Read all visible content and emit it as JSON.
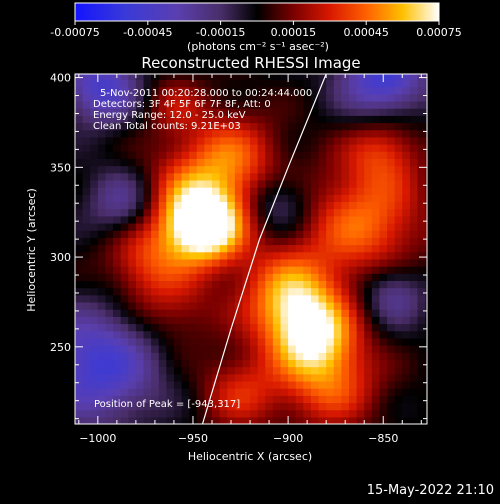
{
  "colorbar": {
    "tick_labels": [
      "-0.00075",
      "-0.00045",
      "-0.00015",
      "0.00015",
      "0.00045",
      "0.00075"
    ],
    "tick_values": [
      -0.00075,
      -0.00045,
      -0.00015,
      0.00015,
      0.00045,
      0.00075
    ],
    "range": [
      -0.00075,
      0.00075
    ],
    "units_label": "(photons cm⁻² s⁻¹ asec⁻²)"
  },
  "chart_data": {
    "type": "heatmap",
    "title": "Reconstructed RHESSI Image",
    "xlabel": "Heliocentric X (arcsec)",
    "ylabel": "Heliocentric Y (arcsec)",
    "xlim": [
      -1012,
      -827
    ],
    "ylim": [
      207,
      402
    ],
    "x_ticks": [
      -1000,
      -950,
      -900,
      -850
    ],
    "x_tick_labels": [
      "−1000",
      "−950",
      "−900",
      "−850"
    ],
    "y_ticks": [
      250,
      300,
      350,
      400
    ],
    "y_tick_labels": [
      "250",
      "300",
      "350",
      "400"
    ],
    "info_lines": [
      "5-Nov-2011 00:20:28.000 to 00:24:44.000",
      "Detectors: 3F 4F 5F 6F 7F 8F, Att: 0",
      "Energy Range: 12.0 - 25.0 keV",
      "Clean    Total counts: 9.21E+03"
    ],
    "peak_label": "Position of Peak = [-943,317]",
    "peak_position": [
      -943,
      317
    ],
    "limb_curve": [
      [
        -945,
        207
      ],
      [
        -930,
        260
      ],
      [
        -915,
        310
      ],
      [
        -900,
        350
      ],
      [
        -880,
        402
      ]
    ],
    "blobs": [
      {
        "x": -943,
        "y": 317,
        "sigma": 14,
        "amp": 0.00075
      },
      {
        "x": -955,
        "y": 330,
        "sigma": 20,
        "amp": 0.0004
      },
      {
        "x": -930,
        "y": 355,
        "sigma": 18,
        "amp": 0.0004
      },
      {
        "x": -975,
        "y": 298,
        "sigma": 16,
        "amp": 0.0003
      },
      {
        "x": -960,
        "y": 270,
        "sigma": 16,
        "amp": 0.0002
      },
      {
        "x": -900,
        "y": 280,
        "sigma": 18,
        "amp": 0.0005
      },
      {
        "x": -888,
        "y": 258,
        "sigma": 16,
        "amp": 0.0006
      },
      {
        "x": -860,
        "y": 320,
        "sigma": 22,
        "amp": 0.00045
      },
      {
        "x": -850,
        "y": 360,
        "sigma": 14,
        "amp": 0.0003
      },
      {
        "x": -878,
        "y": 230,
        "sigma": 18,
        "amp": 0.0004
      },
      {
        "x": -925,
        "y": 225,
        "sigma": 15,
        "amp": 0.0003
      },
      {
        "x": -960,
        "y": 385,
        "sigma": 12,
        "amp": 0.0002
      },
      {
        "x": -1000,
        "y": 240,
        "sigma": 22,
        "amp": -0.0005
      },
      {
        "x": -998,
        "y": 395,
        "sigma": 14,
        "amp": -0.00045
      },
      {
        "x": -850,
        "y": 400,
        "sigma": 16,
        "amp": -0.0005
      },
      {
        "x": -905,
        "y": 330,
        "sigma": 12,
        "amp": -0.00025
      },
      {
        "x": -845,
        "y": 280,
        "sigma": 12,
        "amp": -0.0003
      },
      {
        "x": -985,
        "y": 330,
        "sigma": 14,
        "amp": -0.00035
      }
    ]
  },
  "footer": {
    "timestamp": "15-May-2022 21:10"
  }
}
